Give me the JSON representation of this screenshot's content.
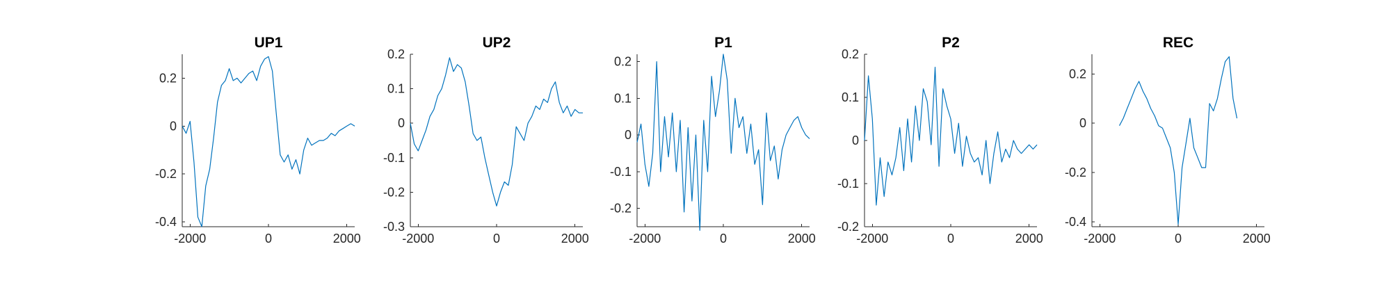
{
  "figure": {
    "series_color": "#0072BD",
    "axis_color": "#262626"
  },
  "chart_data": [
    {
      "type": "line",
      "title": "UP1",
      "xlabel": "",
      "ylabel": "",
      "xlim": [
        -2200,
        2200
      ],
      "ylim": [
        -0.42,
        0.3
      ],
      "xticks": [
        -2000,
        0,
        2000
      ],
      "xtick_labels": [
        "-2000",
        "0",
        "2000"
      ],
      "yticks": [
        -0.4,
        -0.2,
        0,
        0.2
      ],
      "ytick_labels": [
        "-0.4",
        "-0.2",
        "0",
        "0.2"
      ],
      "grid": false,
      "x": [
        -2200,
        -2100,
        -2000,
        -1900,
        -1800,
        -1700,
        -1600,
        -1500,
        -1400,
        -1300,
        -1200,
        -1100,
        -1000,
        -900,
        -800,
        -700,
        -600,
        -500,
        -400,
        -300,
        -200,
        -100,
        0,
        100,
        200,
        300,
        400,
        500,
        600,
        700,
        800,
        900,
        1000,
        1100,
        1200,
        1300,
        1400,
        1500,
        1600,
        1700,
        1800,
        1900,
        2000,
        2100,
        2200
      ],
      "y": [
        0.0,
        -0.03,
        0.02,
        -0.15,
        -0.38,
        -0.42,
        -0.25,
        -0.18,
        -0.05,
        0.1,
        0.17,
        0.19,
        0.24,
        0.19,
        0.2,
        0.18,
        0.2,
        0.22,
        0.23,
        0.19,
        0.25,
        0.28,
        0.29,
        0.23,
        0.05,
        -0.12,
        -0.15,
        -0.12,
        -0.18,
        -0.14,
        -0.2,
        -0.1,
        -0.05,
        -0.08,
        -0.07,
        -0.06,
        -0.06,
        -0.05,
        -0.03,
        -0.04,
        -0.02,
        -0.01,
        0.0,
        0.01,
        0.0
      ]
    },
    {
      "type": "line",
      "title": "UP2",
      "xlabel": "",
      "ylabel": "",
      "xlim": [
        -2200,
        2200
      ],
      "ylim": [
        -0.3,
        0.2
      ],
      "xticks": [
        -2000,
        0,
        2000
      ],
      "xtick_labels": [
        "-2000",
        "0",
        "2000"
      ],
      "yticks": [
        -0.3,
        -0.2,
        -0.1,
        0,
        0.1,
        0.2
      ],
      "ytick_labels": [
        "-0.3",
        "-0.2",
        "-0.1",
        "0",
        "0.1",
        "0.2"
      ],
      "grid": false,
      "x": [
        -2200,
        -2100,
        -2000,
        -1900,
        -1800,
        -1700,
        -1600,
        -1500,
        -1400,
        -1300,
        -1200,
        -1100,
        -1000,
        -900,
        -800,
        -700,
        -600,
        -500,
        -400,
        -300,
        -200,
        -100,
        0,
        100,
        200,
        300,
        400,
        500,
        600,
        700,
        800,
        900,
        1000,
        1100,
        1200,
        1300,
        1400,
        1500,
        1600,
        1700,
        1800,
        1900,
        2000,
        2100,
        2200
      ],
      "y": [
        0.0,
        -0.06,
        -0.08,
        -0.05,
        -0.02,
        0.02,
        0.04,
        0.08,
        0.1,
        0.14,
        0.19,
        0.15,
        0.17,
        0.16,
        0.12,
        0.05,
        -0.03,
        -0.05,
        -0.04,
        -0.1,
        -0.15,
        -0.2,
        -0.24,
        -0.2,
        -0.17,
        -0.18,
        -0.12,
        -0.01,
        -0.03,
        -0.05,
        0.0,
        0.02,
        0.05,
        0.04,
        0.07,
        0.06,
        0.1,
        0.12,
        0.06,
        0.03,
        0.05,
        0.02,
        0.04,
        0.03,
        0.03
      ]
    },
    {
      "type": "line",
      "title": "P1",
      "xlabel": "",
      "ylabel": "",
      "xlim": [
        -2200,
        2200
      ],
      "ylim": [
        -0.25,
        0.22
      ],
      "xticks": [
        -2000,
        0,
        2000
      ],
      "xtick_labels": [
        "-2000",
        "0",
        "2000"
      ],
      "yticks": [
        -0.2,
        -0.1,
        0,
        0.1,
        0.2
      ],
      "ytick_labels": [
        "-0.2",
        "-0.1",
        "0",
        "0.1",
        "0.2"
      ],
      "grid": false,
      "x": [
        -2200,
        -2100,
        -2000,
        -1900,
        -1800,
        -1700,
        -1600,
        -1500,
        -1400,
        -1300,
        -1200,
        -1100,
        -1000,
        -900,
        -800,
        -700,
        -600,
        -500,
        -400,
        -300,
        -200,
        -100,
        0,
        100,
        200,
        300,
        400,
        500,
        600,
        700,
        800,
        900,
        1000,
        1100,
        1200,
        1300,
        1400,
        1500,
        1600,
        1700,
        1800,
        1900,
        2000,
        2100,
        2200
      ],
      "y": [
        -0.02,
        0.03,
        -0.08,
        -0.14,
        -0.05,
        0.2,
        -0.1,
        0.05,
        -0.06,
        0.06,
        -0.1,
        0.04,
        -0.21,
        0.02,
        -0.18,
        0.0,
        -0.26,
        0.04,
        -0.1,
        0.16,
        0.05,
        0.12,
        0.22,
        0.15,
        -0.05,
        0.1,
        0.02,
        0.05,
        -0.05,
        0.03,
        -0.08,
        -0.04,
        -0.19,
        0.06,
        -0.07,
        -0.03,
        -0.12,
        -0.04,
        0.0,
        0.02,
        0.04,
        0.05,
        0.02,
        0.0,
        -0.01
      ]
    },
    {
      "type": "line",
      "title": "P2",
      "xlabel": "",
      "ylabel": "",
      "xlim": [
        -2200,
        2200
      ],
      "ylim": [
        -0.2,
        0.2
      ],
      "xticks": [
        -2000,
        0,
        2000
      ],
      "xtick_labels": [
        "-2000",
        "0",
        "2000"
      ],
      "yticks": [
        -0.2,
        -0.1,
        0,
        0.1,
        0.2
      ],
      "ytick_labels": [
        "-0.2",
        "-0.1",
        "0",
        "0.1",
        "0.2"
      ],
      "grid": false,
      "x": [
        -2200,
        -2100,
        -2000,
        -1900,
        -1800,
        -1700,
        -1600,
        -1500,
        -1400,
        -1300,
        -1200,
        -1100,
        -1000,
        -900,
        -800,
        -700,
        -600,
        -500,
        -400,
        -300,
        -200,
        -100,
        0,
        100,
        200,
        300,
        400,
        500,
        600,
        700,
        800,
        900,
        1000,
        1100,
        1200,
        1300,
        1400,
        1500,
        1600,
        1700,
        1800,
        1900,
        2000,
        2100,
        2200
      ],
      "y": [
        0.0,
        0.15,
        0.05,
        -0.15,
        -0.04,
        -0.13,
        -0.05,
        -0.08,
        -0.04,
        0.03,
        -0.07,
        0.05,
        -0.05,
        0.08,
        0.0,
        0.12,
        0.09,
        -0.01,
        0.17,
        -0.06,
        0.12,
        0.08,
        0.05,
        -0.03,
        0.04,
        -0.06,
        0.01,
        -0.03,
        -0.05,
        -0.04,
        -0.08,
        0.0,
        -0.1,
        -0.03,
        0.02,
        -0.05,
        -0.02,
        -0.04,
        0.0,
        -0.02,
        -0.03,
        -0.02,
        -0.01,
        -0.02,
        -0.01
      ]
    },
    {
      "type": "line",
      "title": "REC",
      "xlabel": "",
      "ylabel": "",
      "xlim": [
        -2200,
        2200
      ],
      "ylim": [
        -0.42,
        0.28
      ],
      "xticks": [
        -2000,
        0,
        2000
      ],
      "xtick_labels": [
        "-2000",
        "0",
        "2000"
      ],
      "yticks": [
        -0.4,
        -0.2,
        0,
        0.2
      ],
      "ytick_labels": [
        "-0.4",
        "-0.2",
        "0",
        "0.2"
      ],
      "grid": false,
      "x": [
        -1500,
        -1400,
        -1300,
        -1200,
        -1100,
        -1000,
        -900,
        -800,
        -700,
        -600,
        -500,
        -400,
        -300,
        -200,
        -100,
        0,
        100,
        200,
        300,
        400,
        500,
        600,
        700,
        800,
        900,
        1000,
        1100,
        1200,
        1300,
        1400,
        1500
      ],
      "y": [
        -0.01,
        0.02,
        0.06,
        0.1,
        0.14,
        0.17,
        0.13,
        0.1,
        0.06,
        0.03,
        -0.01,
        -0.02,
        -0.06,
        -0.1,
        -0.2,
        -0.41,
        -0.18,
        -0.08,
        0.02,
        -0.1,
        -0.14,
        -0.18,
        -0.18,
        0.08,
        0.05,
        0.1,
        0.18,
        0.25,
        0.27,
        0.1,
        0.02
      ]
    }
  ]
}
